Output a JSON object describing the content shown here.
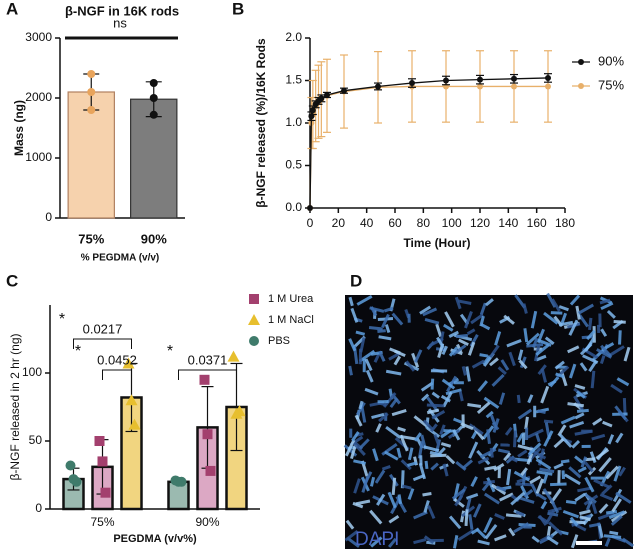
{
  "panel_labels": [
    "A",
    "B",
    "C",
    "D"
  ],
  "image": {
    "label": "DAPI"
  },
  "chart_data": [
    {
      "type": "bar",
      "title": "β-NGF in 16K rods",
      "y_label": "Mass (ng)",
      "x_label": "% PEGDMA (v/v)",
      "categories": [
        "75%",
        "90%"
      ],
      "values": [
        2100,
        1980
      ],
      "errors": [
        300,
        290
      ],
      "points": [
        [
          2400,
          2100,
          1800
        ],
        [
          2250,
          2000,
          1720
        ]
      ],
      "colors": [
        "#f6d2ad",
        "#7d7d7d"
      ],
      "point_colors": [
        "#e8a45c",
        "#111111"
      ],
      "ylim": [
        0,
        3000
      ],
      "yticks": [
        0,
        1000,
        2000,
        3000
      ],
      "annotation": "ns"
    },
    {
      "type": "line",
      "y_label": "β-NGF released (%)/16K  Rods",
      "x_label": "Time (Hour)",
      "x": [
        0,
        1,
        2,
        4,
        6,
        8,
        12,
        24,
        48,
        72,
        96,
        120,
        144,
        168
      ],
      "series": [
        {
          "name": "90%",
          "color": "#111111",
          "values": [
            0,
            1.08,
            1.15,
            1.22,
            1.26,
            1.29,
            1.33,
            1.38,
            1.43,
            1.47,
            1.5,
            1.51,
            1.52,
            1.53
          ],
          "errors": [
            0,
            0.05,
            0.05,
            0.04,
            0.04,
            0.04,
            0.03,
            0.03,
            0.04,
            0.05,
            0.05,
            0.05,
            0.05,
            0.05
          ]
        },
        {
          "name": "75%",
          "color": "#e8b06a",
          "values": [
            0,
            1.0,
            1.1,
            1.2,
            1.25,
            1.28,
            1.32,
            1.37,
            1.42,
            1.43,
            1.43,
            1.43,
            1.43,
            1.43
          ],
          "errors": [
            0,
            0.3,
            0.4,
            0.42,
            0.43,
            0.44,
            0.43,
            0.43,
            0.42,
            0.42,
            0.42,
            0.42,
            0.42,
            0.42
          ]
        }
      ],
      "xlim": [
        0,
        180
      ],
      "xticks": [
        0,
        20,
        40,
        60,
        80,
        100,
        120,
        140,
        160,
        180
      ],
      "ylim": [
        0,
        2
      ],
      "yticks": [
        {
          "value": 0,
          "label": "0.0"
        },
        {
          "value": 0.5,
          "label": "0.5"
        },
        {
          "value": 1,
          "label": "1.0"
        },
        {
          "value": 1.5,
          "label": "1.5"
        },
        {
          "value": 2,
          "label": "2.0"
        }
      ]
    },
    {
      "type": "grouped_bar",
      "y_label": "β-NGF released in 2 hr (ng)",
      "x_label": "PEGDMA (v/v%)",
      "categories": [
        "75%",
        "90%"
      ],
      "series": [
        {
          "name": "PBS",
          "color": "#9bbab0",
          "point_color": "#3f7b6b",
          "values": [
            22,
            20
          ],
          "errors": [
            8,
            1
          ],
          "points": [
            [
              32,
              22,
              20
            ],
            [
              21,
              20,
              20
            ]
          ]
        },
        {
          "name": "1 M Urea",
          "color": "#dca8c4",
          "point_color": "#a3406e",
          "values": [
            31,
            60
          ],
          "errors": [
            20,
            30
          ],
          "points": [
            [
              50,
              35,
              12
            ],
            [
              95,
              55,
              28
            ]
          ]
        },
        {
          "name": "1 M NaCl",
          "color": "#f1d580",
          "point_color": "#e7bf2e",
          "values": [
            82,
            75
          ],
          "errors": [
            25,
            32
          ],
          "points": [
            [
              107,
              80,
              62
            ],
            [
              112,
              70,
              72
            ]
          ]
        }
      ],
      "ylim": [
        0,
        150
      ],
      "yticks": [
        0,
        50,
        100
      ],
      "annotations": [
        {
          "star": "*",
          "text": "0.0217"
        },
        {
          "star": "*",
          "text": "0.0452"
        },
        {
          "star": "*",
          "text": "0.0371"
        }
      ]
    }
  ]
}
